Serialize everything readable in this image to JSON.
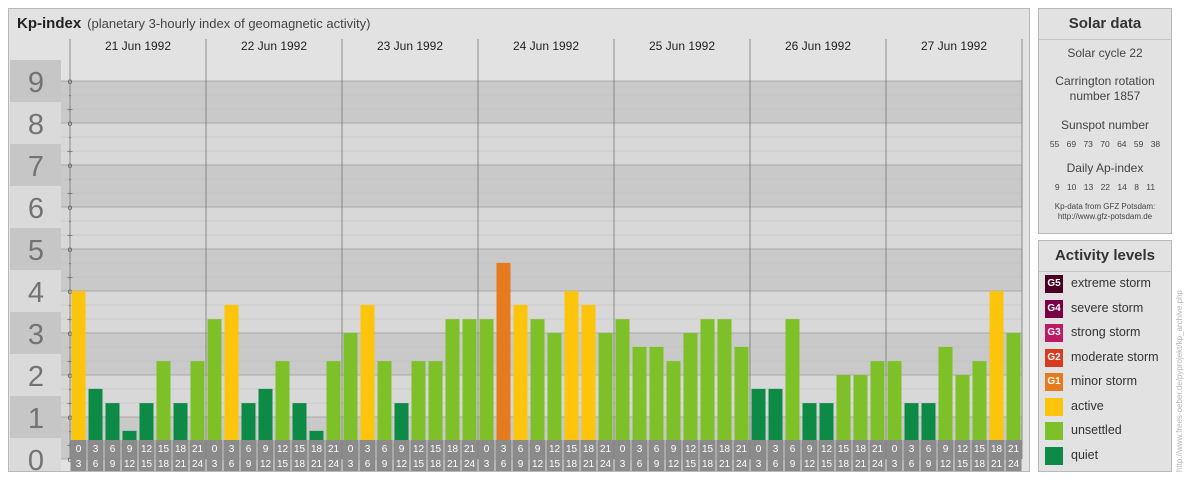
{
  "title": "Kp-index",
  "subtitle": "(planetary 3-hourly index of geomagnetic activity)",
  "solar": {
    "header": "Solar data",
    "cycle": "Solar cycle 22",
    "carrington_1": "Carrington rotation",
    "carrington_2": "number 1857",
    "sunspot_label": "Sunspot number",
    "sunspot_values": "55 69 73 70 64 59 38",
    "ap_label": "Daily Ap-index",
    "ap_values": "9 10 13 22 14 8 11",
    "credit_1": "Kp-data from GFZ Potsdam:",
    "credit_2": "http://www.gfz-potsdam.de"
  },
  "activity": {
    "header": "Activity levels",
    "levels": [
      {
        "code": "G5",
        "label": "extreme storm",
        "color": "#4a0024"
      },
      {
        "code": "G4",
        "label": "severe storm",
        "color": "#7a0046"
      },
      {
        "code": "G3",
        "label": "strong storm",
        "color": "#bd1a66"
      },
      {
        "code": "G2",
        "label": "moderate storm",
        "color": "#d9391f"
      },
      {
        "code": "G1",
        "label": "minor storm",
        "color": "#e67a1e"
      },
      {
        "code": "",
        "label": "active",
        "color": "#fcc40a"
      },
      {
        "code": "",
        "label": "unsettled",
        "color": "#7ec028"
      },
      {
        "code": "",
        "label": "quiet",
        "color": "#0d8a45"
      }
    ]
  },
  "watermark": "http://www.frees-oeber.de/pyprojekt/kp_archive.php",
  "chart_data": {
    "type": "bar",
    "title": "Kp-index",
    "subtitle": "(planetary 3-hourly index of geomagnetic activity)",
    "ylim": [
      0,
      9
    ],
    "y_ticks": [
      "0",
      "1",
      "2",
      "3",
      "4",
      "5",
      "6",
      "7",
      "8",
      "9"
    ],
    "sub_ticks": [
      "o",
      "+",
      "-"
    ],
    "days": [
      "21 Jun 1992",
      "22 Jun 1992",
      "23 Jun 1992",
      "24 Jun 1992",
      "25 Jun 1992",
      "26 Jun 1992",
      "27 Jun 1992"
    ],
    "interval_top": [
      "0",
      "3",
      "6",
      "9",
      "12",
      "15",
      "18",
      "21"
    ],
    "interval_bottom": [
      "3",
      "6",
      "9",
      "12",
      "15",
      "18",
      "21",
      "24"
    ],
    "series": [
      {
        "values": [
          4.0,
          1.67,
          1.33,
          0.67,
          1.33,
          2.33,
          1.33,
          2.33,
          3.33,
          3.67,
          1.33,
          1.67,
          2.33,
          1.33,
          0.67,
          2.33,
          3.0,
          3.67,
          2.33,
          1.33,
          2.33,
          2.33,
          3.33,
          3.33,
          3.33,
          4.67,
          3.67,
          3.33,
          3.0,
          4.0,
          3.67,
          3.0,
          3.33,
          2.67,
          2.67,
          2.33,
          3.0,
          3.33,
          3.33,
          2.67,
          1.67,
          1.67,
          3.33,
          1.33,
          1.33,
          2.0,
          2.0,
          2.33,
          2.33,
          1.33,
          1.33,
          2.67,
          2.0,
          2.33,
          4.0,
          3.0
        ]
      }
    ],
    "level_colors": {
      "quiet": "#0d8a45",
      "unsettled": "#7ec028",
      "active": "#fcc40a",
      "minor_storm": "#e67a1e"
    },
    "grid": true
  }
}
